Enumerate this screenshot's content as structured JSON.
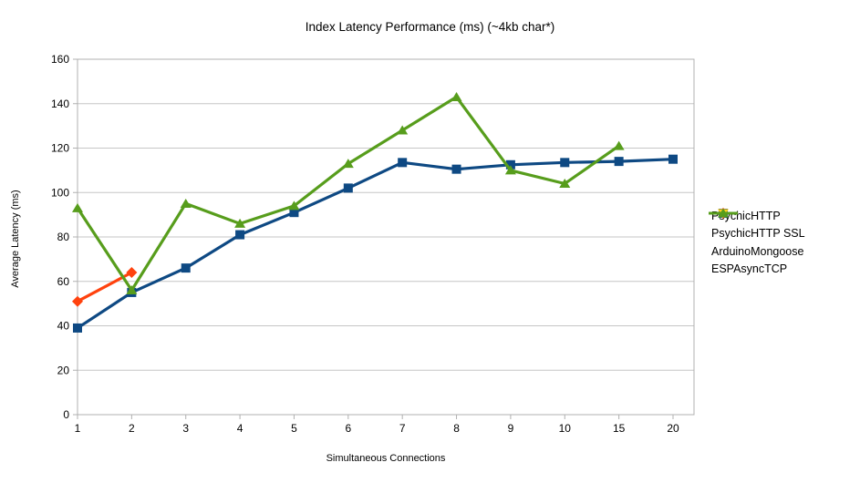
{
  "chart_data": {
    "type": "line",
    "title": "Index Latency Performance (ms) (~4kb char*)",
    "xlabel": "Simultaneous Connections",
    "ylabel": "Average Latency (ms)",
    "categories": [
      "1",
      "2",
      "3",
      "4",
      "5",
      "6",
      "7",
      "8",
      "9",
      "10",
      "15",
      "20"
    ],
    "ylim": [
      0,
      160
    ],
    "yticks": [
      0,
      20,
      40,
      60,
      80,
      100,
      120,
      140,
      160
    ],
    "grid": "horizontal",
    "legend_position": "right",
    "colors": {
      "grid": "#c6c6c6",
      "border": "#b0b0b0",
      "text": "#000000"
    },
    "series": [
      {
        "name": "PsychicHTTP",
        "color": "#0E4983",
        "marker": "square",
        "values": [
          39,
          55,
          66,
          81,
          91,
          102,
          113.5,
          110.5,
          112.5,
          113.5,
          114,
          115
        ]
      },
      {
        "name": "PsychicHTTP SSL",
        "color": "#FF420E",
        "marker": "diamond",
        "values": [
          51,
          64,
          null,
          null,
          null,
          null,
          null,
          null,
          null,
          null,
          null,
          null
        ]
      },
      {
        "name": "ArduinoMongoose",
        "color": "#FFD320",
        "marker": "triangle-down",
        "values": [
          null,
          null,
          null,
          null,
          null,
          null,
          null,
          null,
          null,
          null,
          null,
          null
        ]
      },
      {
        "name": "ESPAsyncTCP",
        "color": "#579D1C",
        "marker": "triangle-up",
        "values": [
          93,
          56,
          95,
          86,
          94,
          113,
          128,
          143,
          110,
          104,
          121,
          null
        ]
      }
    ]
  }
}
